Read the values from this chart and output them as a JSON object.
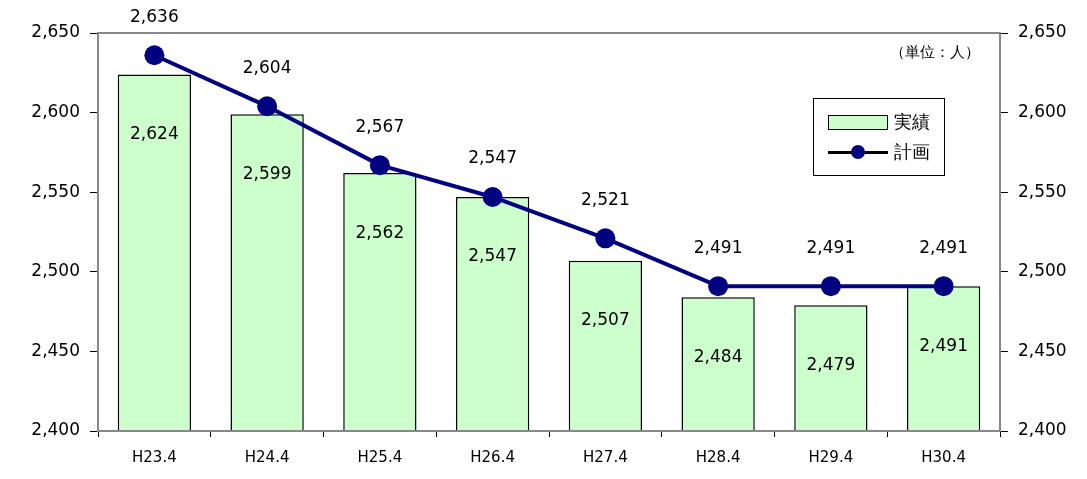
{
  "chart_data": {
    "type": "bar",
    "categories": [
      "H23.4",
      "H24.4",
      "H25.4",
      "H26.4",
      "H27.4",
      "H28.4",
      "H29.4",
      "H30.4"
    ],
    "series": [
      {
        "name": "実績",
        "color": "#ccffcc",
        "values": [
          2624,
          2599,
          2562,
          2547,
          2507,
          2484,
          2479,
          2491
        ],
        "value_labels": [
          "2,624",
          "2,599",
          "2,562",
          "2,547",
          "2,507",
          "2,484",
          "2,479",
          "2,491"
        ]
      },
      {
        "name": "計画",
        "type": "line",
        "color": "#000080",
        "values": [
          2636,
          2604,
          2567,
          2547,
          2521,
          2491,
          2491,
          2491
        ],
        "value_labels": [
          "2,636",
          "2,604",
          "2,567",
          "2,547",
          "2,521",
          "2,491",
          "2,491",
          "2,491"
        ]
      }
    ],
    "ylim": [
      2400,
      2650
    ],
    "yticks": [
      {
        "value": 2400,
        "label": "2,400"
      },
      {
        "value": 2450,
        "label": "2,450"
      },
      {
        "value": 2500,
        "label": "2,500"
      },
      {
        "value": 2550,
        "label": "2,550"
      },
      {
        "value": 2600,
        "label": "2,600"
      },
      {
        "value": 2650,
        "label": "2,650"
      }
    ],
    "y2lim": [
      2400,
      2650
    ],
    "y2ticks": [
      {
        "value": 2400,
        "label": "2,400"
      },
      {
        "value": 2450,
        "label": "2,450"
      },
      {
        "value": 2500,
        "label": "2,500"
      },
      {
        "value": 2550,
        "label": "2,550"
      },
      {
        "value": 2600,
        "label": "2,600"
      },
      {
        "value": 2650,
        "label": "2,650"
      }
    ],
    "annotations": [
      "（単位：人）"
    ],
    "legend": "top right",
    "grid": false,
    "marker": "circle"
  }
}
